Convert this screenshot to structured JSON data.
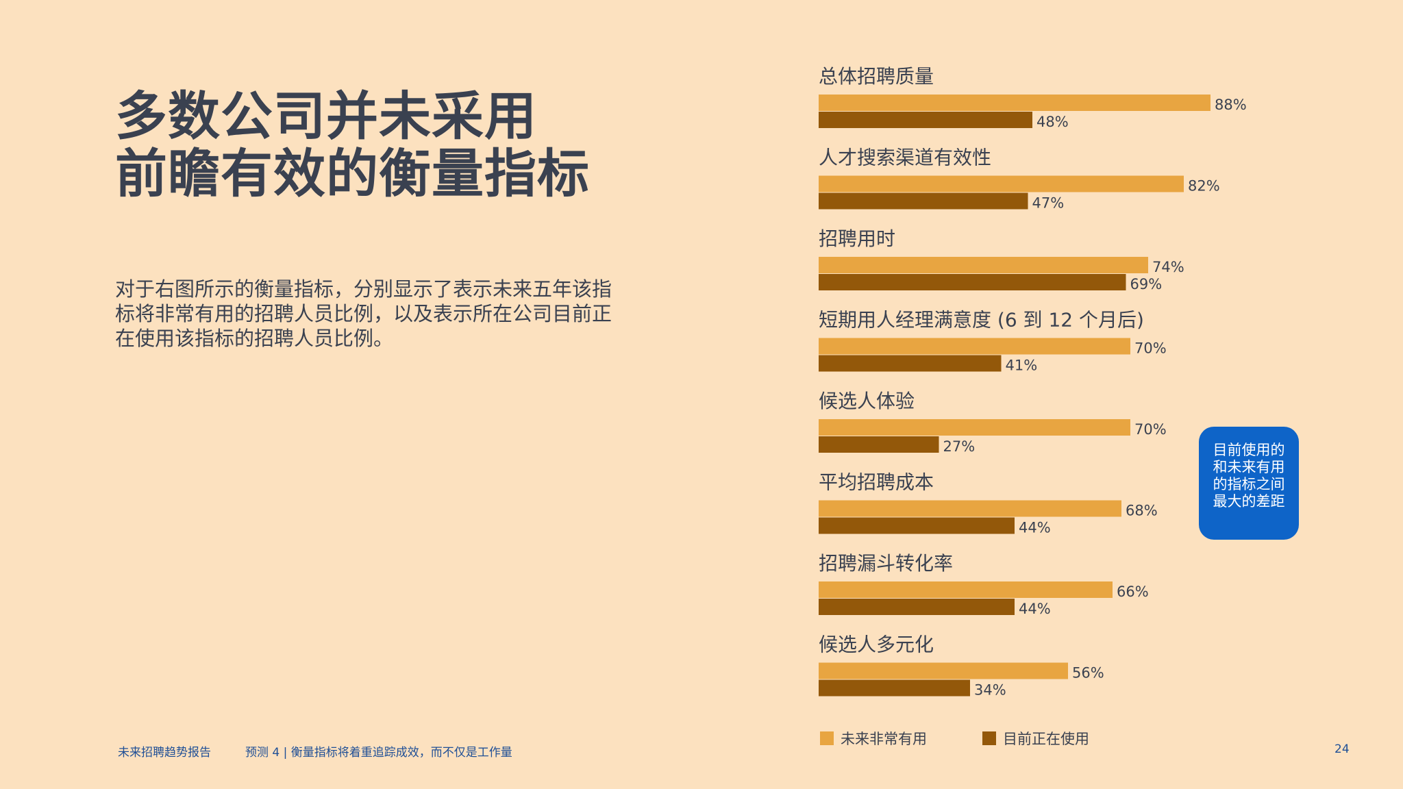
{
  "title": {
    "line1": "多数公司并未采用",
    "line2": "前瞻有效的衡量指标"
  },
  "description": "对于右图所示的衡量指标，分别显示了表示未来五年该指标将非常有用的招聘人员比例，以及表示所在公司目前正在使用该指标的招聘人员比例。",
  "callout": {
    "line1": "目前使用的",
    "line2": "和未来有用",
    "line3": "的指标之间",
    "line4": "最大的差距"
  },
  "footer": {
    "report": "未来招聘趋势报告",
    "section": "预测 4 | 衡量指标将着重追踪成效，而不仅是工作量",
    "page": "24"
  },
  "colors": {
    "future": "#e8a541",
    "current": "#93580a",
    "callout": "#0e64c8",
    "background": "#fce1bf"
  },
  "chart_data": {
    "type": "bar",
    "orientation": "horizontal",
    "categories": [
      "总体招聘质量",
      "人才搜索渠道有效性",
      "招聘用时",
      "短期用人经理满意度 (6 到 12 个月后)",
      "候选人体验",
      "平均招聘成本",
      "招聘漏斗转化率",
      "候选人多元化"
    ],
    "series": [
      {
        "name": "未来非常有用",
        "color": "#e8a541",
        "values": [
          88,
          82,
          74,
          70,
          70,
          68,
          66,
          56
        ]
      },
      {
        "name": "目前正在使用",
        "color": "#93580a",
        "values": [
          48,
          47,
          69,
          41,
          27,
          44,
          44,
          34
        ]
      }
    ],
    "value_suffix": "%",
    "xlim": [
      0,
      100
    ],
    "legend_position": "bottom-left",
    "grid": false
  }
}
